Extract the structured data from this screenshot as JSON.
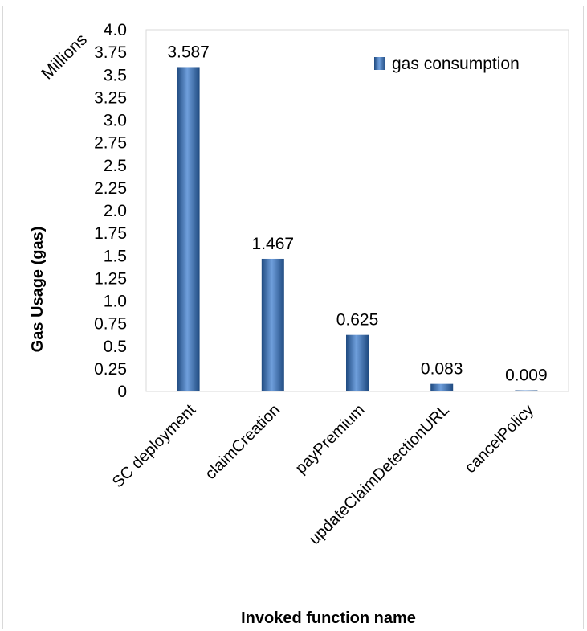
{
  "chart_data": {
    "type": "bar",
    "categories": [
      "SC deployment",
      "claimCreation",
      "payPremium",
      "updateClaimDetectionURL",
      "cancelPolicy"
    ],
    "series": [
      {
        "name": "gas consumption",
        "values": [
          3.587,
          1.467,
          0.625,
          0.083,
          0.009
        ]
      }
    ],
    "data_labels": [
      "3.587",
      "1.467",
      "0.625",
      "0.083",
      "0.009"
    ],
    "xlabel": "Invoked function name",
    "ylabel": "Gas Usage (gas)",
    "unit_label": "Millions",
    "ylim": [
      0,
      4.0
    ],
    "yticks": [
      "0",
      "0.25",
      "0.5",
      "0.75",
      "1.0",
      "1.25",
      "1.5",
      "1.75",
      "2.0",
      "2.25",
      "2.5",
      "2.75",
      "3.0",
      "3.25",
      "3.5",
      "3.75",
      "4.0"
    ],
    "legend_position": "top-right",
    "grid": false,
    "colors": {
      "bar": "#3e72b8",
      "bar_dark": "#1f4a80",
      "bar_light": "#6f9fdc"
    }
  }
}
